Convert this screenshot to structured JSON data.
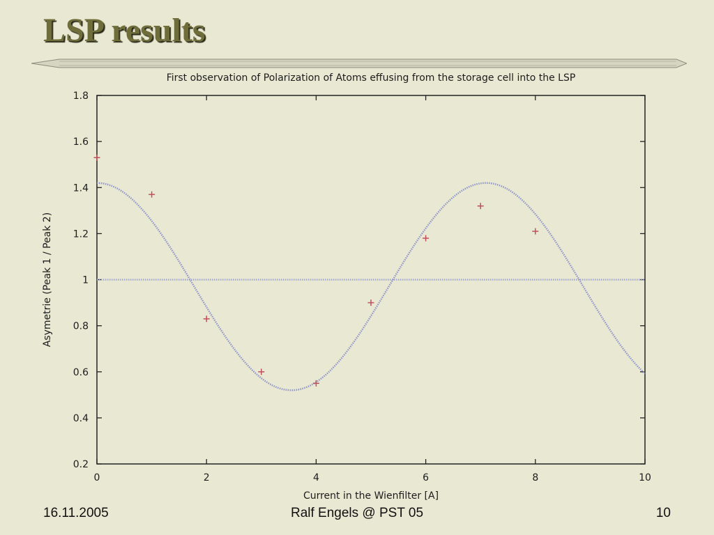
{
  "slide": {
    "title": "LSP results",
    "footer_left": "16.11.2005",
    "footer_center": "Ralf Engels @ PST 05",
    "footer_right": "10"
  },
  "colors": {
    "background": "#e9e8d3",
    "title": "#6f6e3a",
    "points": "#c0505a",
    "fit_line": "#8f95c8",
    "reference_line": "#a3a7cf"
  },
  "chart_data": {
    "type": "scatter",
    "title": "First observation of Polarization of Atoms effusing from the storage cell into the LSP",
    "xlabel": "Current in the Wienfilter [A]",
    "ylabel": "Asymetrie (Peak 1 / Peak 2)",
    "xlim": [
      0,
      10
    ],
    "ylim": [
      0.2,
      1.8
    ],
    "xticks": [
      0,
      2,
      4,
      6,
      8,
      10
    ],
    "yticks": [
      0.2,
      0.4,
      0.6,
      0.8,
      1,
      1.2,
      1.4,
      1.6,
      1.8
    ],
    "xtick_labels": [
      "0",
      "2",
      "4",
      "6",
      "8",
      "10"
    ],
    "ytick_labels": [
      "0.2",
      "0.4",
      "0.6",
      "0.8",
      "1",
      "1.2",
      "1.4",
      "1.6",
      "1.8"
    ],
    "grid": false,
    "series": [
      {
        "kind": "points",
        "marker": "plus",
        "x": [
          0,
          1,
          2,
          3,
          4,
          5,
          6,
          7,
          8
        ],
        "y": [
          1.53,
          1.37,
          0.83,
          0.6,
          0.55,
          0.9,
          1.18,
          1.32,
          1.21
        ]
      },
      {
        "kind": "fit-curve",
        "style": "dotted",
        "function": "cosine",
        "offset": 0.97,
        "amplitude": 0.45,
        "period": 7.1,
        "x_start": 0,
        "x_end": 10
      },
      {
        "kind": "reference-line",
        "style": "dotted",
        "y": 1.0
      }
    ]
  }
}
